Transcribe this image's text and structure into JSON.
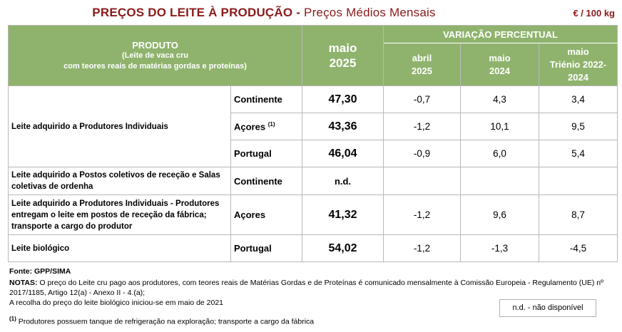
{
  "title": {
    "main": "PREÇOS DO LEITE À PRODUÇÃO",
    "separator": " - ",
    "sub": "Preços Médios Mensais"
  },
  "unit": "€ / 100 kg",
  "header": {
    "product": "PRODUTO",
    "product_note_1": "(Leite de vaca cru",
    "product_note_2": "com teores reais de matérias gordas e proteínas)",
    "current_month": "maio",
    "current_year": "2025",
    "variation": "VARIAÇÃO PERCENTUAL",
    "col_a_1": "abril",
    "col_a_2": "2025",
    "col_b_1": "maio",
    "col_b_2": "2024",
    "col_c_1": "maio",
    "col_c_2": "Triénio 2022-",
    "col_c_3": "2024"
  },
  "rows": [
    {
      "product": "Leite adquirido a Produtores Individuais",
      "region": "Continente",
      "price": "47,30",
      "var_month": "-0,7",
      "var_year": "4,3",
      "var_triennium": "3,4"
    },
    {
      "product": "",
      "region": "Açores",
      "region_note": "(1)",
      "price": "43,36",
      "var_month": "-1,2",
      "var_year": "10,1",
      "var_triennium": "9,5"
    },
    {
      "product": "",
      "region": "Portugal",
      "price": "46,04",
      "var_month": "-0,9",
      "var_year": "6,0",
      "var_triennium": "5,4"
    },
    {
      "product": "Leite adquirido a Postos coletivos de receção e Salas coletivas de ordenha",
      "region": "Continente",
      "price": "n.d.",
      "var_month": "",
      "var_year": "",
      "var_triennium": ""
    },
    {
      "product": "Leite adquirido a Produtores Individuais - Produtores entregam o leite em postos de receção da fábrica; transporte a cargo do produtor",
      "region": "Açores",
      "price": "41,32",
      "var_month": "-1,2",
      "var_year": "9,6",
      "var_triennium": "8,7"
    },
    {
      "product": "Leite biológico",
      "region": "Portugal",
      "price": "54,02",
      "var_month": "-1,2",
      "var_year": "-1,3",
      "var_triennium": "-4,5"
    }
  ],
  "footer": {
    "source": "Fonte: GPP/SIMA",
    "notes_label": "NOTAS:",
    "notes_1": " O preço do Leite cru pago aos produtores, com teores reais de Matérias Gordas e de Proteínas é comunicado mensalmente à Comissão Europeia - Regulamento (UE) nº",
    "notes_2": "2017/1185, Artigo 12(a) - Anexo II - 4.(a);",
    "notes_3": "A recolha do preço do leite biológico iniciou-se em maio de 2021",
    "footnote_mark": "(1)",
    "footnote": " Produtores possuem tanque de refrigeração na exploração; transporte a cargo da fábrica",
    "legend": "n.d. - não disponível"
  }
}
